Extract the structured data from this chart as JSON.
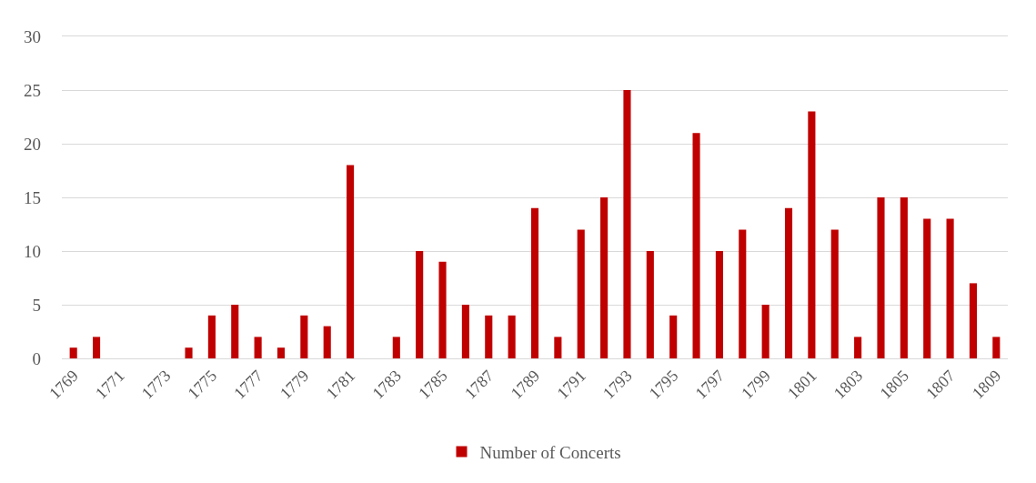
{
  "chart_data": {
    "type": "bar",
    "categories": [
      "1769",
      null,
      "1771",
      null,
      "1773",
      null,
      "1775",
      null,
      "1777",
      null,
      "1779",
      null,
      "1781",
      null,
      "1783",
      null,
      "1785",
      null,
      "1787",
      null,
      "1789",
      null,
      "1791",
      null,
      "1793",
      null,
      "1795",
      null,
      "1797",
      null,
      "1799",
      null,
      "1801",
      null,
      "1803",
      null,
      "1805",
      null,
      "1807",
      null,
      "1809"
    ],
    "series": [
      {
        "name": "Number of Concerts",
        "color": "#c00000",
        "values": [
          1,
          2,
          0,
          0,
          0,
          1,
          4,
          5,
          2,
          1,
          4,
          3,
          18,
          0,
          2,
          10,
          9,
          5,
          4,
          4,
          14,
          2,
          12,
          15,
          25,
          10,
          4,
          21,
          10,
          12,
          5,
          14,
          23,
          12,
          2,
          15,
          15,
          13,
          13,
          7,
          2
        ]
      }
    ],
    "ylim": [
      0,
      30
    ],
    "yticks": [
      0,
      5,
      10,
      15,
      20,
      25,
      30
    ],
    "grid": "y",
    "legend": "bottom"
  }
}
